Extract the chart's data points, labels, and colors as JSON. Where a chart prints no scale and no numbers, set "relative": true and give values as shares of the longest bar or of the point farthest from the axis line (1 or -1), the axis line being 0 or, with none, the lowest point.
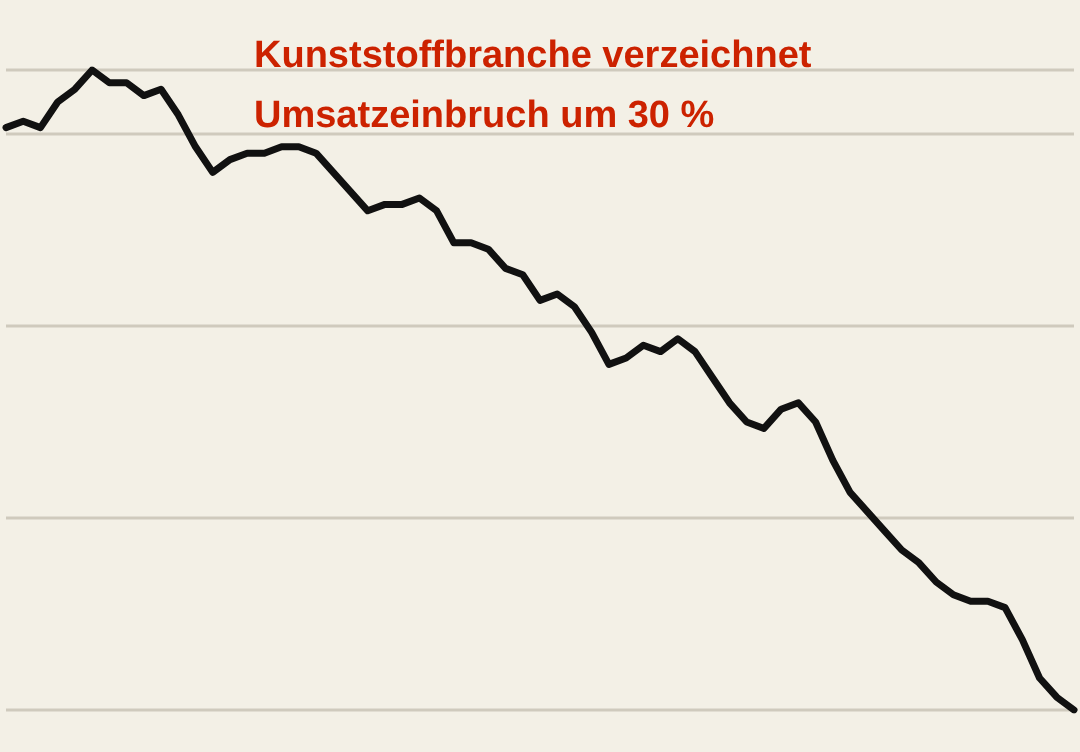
{
  "chart_data": {
    "type": "line",
    "title": "Kunststoffbranche verzeichnet\nUmsatzeinbruch um 30 %",
    "relative": true,
    "grid": "y",
    "marker": "none",
    "line_style": "solid",
    "categories": [
      null,
      null,
      null,
      null,
      null,
      null,
      null,
      null,
      null,
      null,
      null,
      null,
      null,
      null,
      null,
      null,
      null,
      null,
      null,
      null,
      null,
      null,
      null,
      null,
      null,
      null,
      null,
      null,
      null,
      null,
      null,
      null,
      null,
      null,
      null,
      null,
      null,
      null,
      null,
      null,
      null,
      null,
      null,
      null,
      null,
      null,
      null,
      null,
      null,
      null,
      null,
      null,
      null,
      null,
      null,
      null,
      null,
      null,
      null,
      null,
      null,
      null,
      null
    ],
    "series": [
      {
        "color": "#111111",
        "values": [
          0.91,
          0.92,
          0.91,
          0.95,
          0.97,
          1,
          0.98,
          0.98,
          0.96,
          0.97,
          0.93,
          0.88,
          0.84,
          0.86,
          0.87,
          0.87,
          0.88,
          0.88,
          0.87,
          0.84,
          0.81,
          0.78,
          0.79,
          0.79,
          0.8,
          0.78,
          0.73,
          0.73,
          0.72,
          0.69,
          0.68,
          0.64,
          0.65,
          0.63,
          0.59,
          0.54,
          0.55,
          0.57,
          0.56,
          0.58,
          0.56,
          0.52,
          0.48,
          0.45,
          0.44,
          0.47,
          0.48,
          0.45,
          0.39,
          0.34,
          0.31,
          0.28,
          0.25,
          0.23,
          0.2,
          0.18,
          0.17,
          0.17,
          0.16,
          0.11,
          0.05,
          0.02,
          0
        ]
      }
    ]
  }
}
